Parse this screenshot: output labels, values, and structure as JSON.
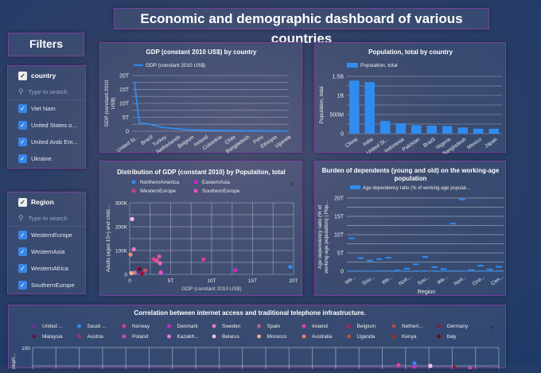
{
  "title": "Economic and demographic dashboard of various countries",
  "filters": {
    "title": "Filters",
    "country": {
      "label": "country",
      "placeholder": "Type to search",
      "items": [
        "Viet Nam",
        "United States o...",
        "United Arab Em...",
        "Ukraine"
      ]
    },
    "region": {
      "label": "Region",
      "placeholder": "Type to search",
      "items": [
        "WesternEurope",
        "WesternAsia",
        "WesternAfrica",
        "SouthernEurope"
      ]
    }
  },
  "colors": {
    "accent": "#2f8cf0",
    "border": "#7a3f9e"
  },
  "chart_data": [
    {
      "type": "line",
      "title": "GDP (constant 2010 US$) by country",
      "legend": "GDP (constant 2010 US$)",
      "ylabel": "GDP (constant 2010 US$)",
      "yticks": [
        "0",
        "5T",
        "10T",
        "15T",
        "20T"
      ],
      "ylim": [
        0,
        20
      ],
      "categories": [
        "United St...",
        "Brazil",
        "Turkey",
        "Netherlands",
        "Belgium",
        "Ireland",
        "Colombia",
        "Chile",
        "Bangladesh",
        "Peru",
        "Ethiopia",
        "Uganda"
      ],
      "values": [
        17.8,
        2.6,
        1.4,
        0.9,
        0.5,
        0.4,
        0.35,
        0.25,
        0.2,
        0.18,
        0.07,
        0.03
      ]
    },
    {
      "type": "bar",
      "title": "Population, total by country",
      "legend": "Population, total",
      "ylabel": "Population, total",
      "yticks": [
        "0",
        "500M",
        "1B",
        "1.5B"
      ],
      "ylim": [
        0,
        1.5
      ],
      "categories": [
        "China",
        "India",
        "United St...",
        "Indonesia",
        "Pakistan",
        "Brazil",
        "Nigeria",
        "Bangladesh",
        "Mexico",
        "Japan"
      ],
      "values": [
        1.39,
        1.35,
        0.33,
        0.27,
        0.22,
        0.21,
        0.2,
        0.16,
        0.13,
        0.126
      ]
    },
    {
      "type": "scatter",
      "title": "Distribution of GDP (constant 2010) by Population, total",
      "xlabel": "GDP (constant 2010 US$)",
      "ylabel": "Adults (ages 15+) and child...",
      "xticks": [
        "0",
        "5T",
        "10T",
        "15T",
        "20T"
      ],
      "yticks": [
        "0",
        "100K",
        "200K",
        "300K"
      ],
      "xlim": [
        0,
        20
      ],
      "ylim": [
        0,
        300
      ],
      "legend": [
        {
          "name": "NorthernAmerica",
          "color": "#2f8cf0"
        },
        {
          "name": "EasternAsia",
          "color": "#c72bc9"
        },
        {
          "name": "WesternEurope",
          "color": "#d63e8a"
        },
        {
          "name": "SouthernEurope",
          "color": "#e84fd0"
        }
      ],
      "points": [
        [
          0.3,
          232,
          "#f2b6e6"
        ],
        [
          0.5,
          105,
          "#e87ac8"
        ],
        [
          0.1,
          83,
          "#f08a70"
        ],
        [
          2.9,
          64,
          "#d63e8a"
        ],
        [
          3.3,
          58,
          "#e84fa0"
        ],
        [
          3.6,
          75,
          "#d65a9a"
        ],
        [
          3.7,
          47,
          "#e86ac0"
        ],
        [
          3.8,
          8,
          "#e84fd0"
        ],
        [
          9,
          63,
          "#d63e8a"
        ],
        [
          12.9,
          17,
          "#c72bc9"
        ],
        [
          19.6,
          32,
          "#2f8cf0"
        ],
        [
          1.1,
          25,
          "#a02060"
        ],
        [
          1.2,
          22,
          "#6a1030"
        ],
        [
          1.9,
          16,
          "#c0506a"
        ],
        [
          1.5,
          3,
          "#9a1040"
        ],
        [
          0.6,
          7,
          "#d070b0"
        ],
        [
          0.2,
          5,
          "#f0b090"
        ]
      ]
    },
    {
      "type": "scatter",
      "title": "Burden of dependents (young and old) on the working-age population",
      "legend": "Age dependency ratio (% of working-age populat...",
      "xlabel": "Region",
      "ylabel": "Age dependency ratio (% of working-age population) | Pop...",
      "yticks": [
        "0",
        "5T",
        "10T",
        "15T",
        "20T"
      ],
      "ylim": [
        0,
        20
      ],
      "xticks": [
        "We...",
        "Sou...",
        "We...",
        "Nort...",
        "Sou...",
        "We...",
        "Nort...",
        "Oce...",
        "Cen..."
      ],
      "values": [
        9,
        3.6,
        2.9,
        3.3,
        3.7,
        0.2,
        0.7,
        1.9,
        3.9,
        1.1,
        0.6,
        13,
        19.6,
        0.3,
        1.5,
        0.5,
        1.2
      ]
    },
    {
      "type": "scatter",
      "title": "Correlation between internet access and traditional telephone infrastructure.",
      "ylabel": "Teleph...",
      "yticks": [
        "100"
      ],
      "legend": [
        {
          "name": "United ...",
          "color": "#7a2ab0"
        },
        {
          "name": "Saudi ...",
          "color": "#2f8cf0"
        },
        {
          "name": "Norway",
          "color": "#d63e8a"
        },
        {
          "name": "Denmark",
          "color": "#c72bc9"
        },
        {
          "name": "Sweden",
          "color": "#e87ac8"
        },
        {
          "name": "Spain",
          "color": "#c0608a"
        },
        {
          "name": "Ireland",
          "color": "#e83ea0"
        },
        {
          "name": "Belgium",
          "color": "#b02060"
        },
        {
          "name": "Netherl...",
          "color": "#b04a5a"
        },
        {
          "name": "Germany",
          "color": "#8a1a40"
        },
        {
          "name": "Malaysia",
          "color": "#6a1040"
        },
        {
          "name": "Austria",
          "color": "#a0307a"
        },
        {
          "name": "Poland",
          "color": "#d04a9a"
        },
        {
          "name": "Kazakh...",
          "color": "#e87ad8"
        },
        {
          "name": "Belarus",
          "color": "#f2c0ea"
        },
        {
          "name": "Morocco",
          "color": "#f0b090"
        },
        {
          "name": "Australia",
          "color": "#e88070"
        },
        {
          "name": "Uganda",
          "color": "#c0503a"
        },
        {
          "name": "Kenya",
          "color": "#a03020"
        },
        {
          "name": "Italy",
          "color": "#6a0a10"
        }
      ]
    }
  ]
}
